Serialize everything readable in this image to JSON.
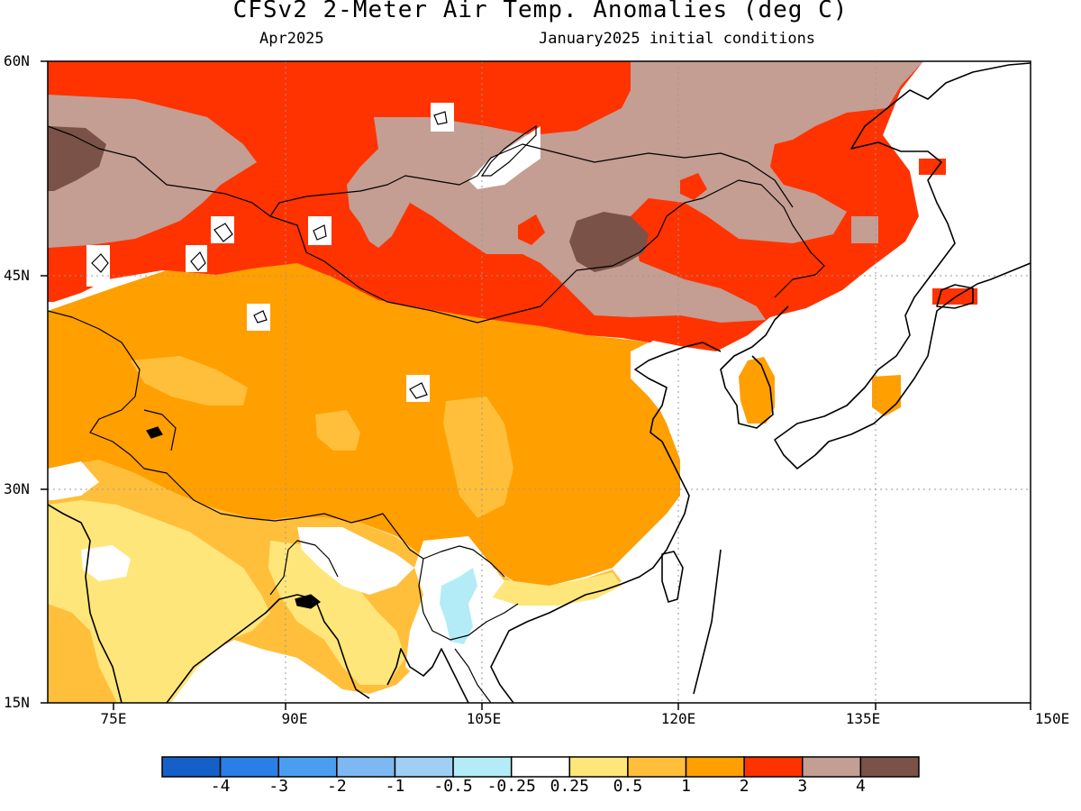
{
  "title": "CFSv2 2-Meter Air Temp. Anomalies (deg C)",
  "subtitle_left": "Apr2025",
  "subtitle_right": "January2025 initial conditions",
  "lat_labels": [
    "60N",
    "45N",
    "30N",
    "15N"
  ],
  "lon_labels": [
    "75E",
    "90E",
    "105E",
    "120E",
    "135E",
    "150E"
  ],
  "colorbar": {
    "labels": [
      "-4",
      "-3",
      "-2",
      "-1",
      "-0.5",
      "-0.25",
      "0.25",
      "0.5",
      "1",
      "2",
      "3",
      "4"
    ],
    "colors": [
      "#1560c8",
      "#2a7fe6",
      "#4a9ef0",
      "#7db8f2",
      "#9fd0f4",
      "#b3ecf6",
      "#ffffff",
      "#ffe67a",
      "#ffbf3b",
      "#ff9f00",
      "#ff3300",
      "#c49d93",
      "#7a5248"
    ]
  },
  "map_colors": {
    "anom_4": "#7a5248",
    "anom_3": "#c49d93",
    "anom_2": "#ff3300",
    "anom_1": "#ff9f00",
    "anom_05": "#ffbf3b",
    "anom_025": "#ffe67a",
    "anom_neg025": "#b3ecf6",
    "coast": "#000000",
    "grid": "#9a9a9a"
  }
}
